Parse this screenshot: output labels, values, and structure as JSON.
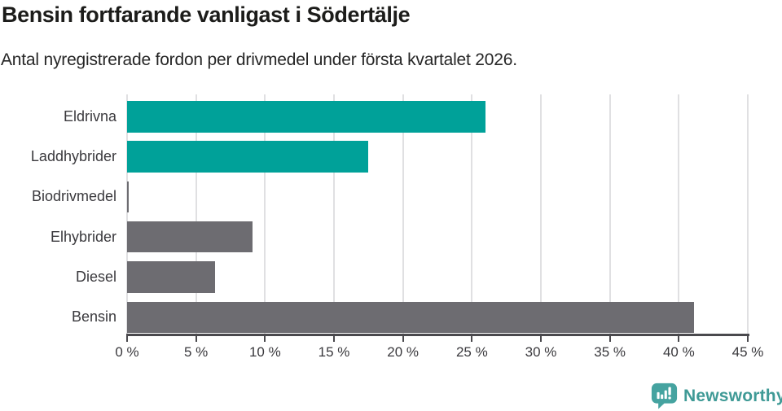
{
  "chart_data": {
    "type": "bar",
    "orientation": "horizontal",
    "title": "Bensin fortfarande vanligast i Södertälje",
    "subtitle": "Antal nyregistrerade fordon per drivmedel under första kvartalet 2026.",
    "categories": [
      "Eldrivna",
      "Laddhybrider",
      "Biodrivmedel",
      "Elhybrider",
      "Diesel",
      "Bensin"
    ],
    "values": [
      26,
      17.5,
      0.1,
      9.1,
      6.4,
      41.1
    ],
    "unit": "%",
    "bar_colors": [
      "#00a199",
      "#00a199",
      "#6d6c71",
      "#6d6c71",
      "#6d6c71",
      "#6d6c71"
    ],
    "xlabel": "",
    "ylabel": "",
    "xlim": [
      0,
      45
    ],
    "x_ticks": [
      0,
      5,
      10,
      15,
      20,
      25,
      30,
      35,
      40,
      45
    ],
    "x_tick_labels": [
      "0 %",
      "5 %",
      "10 %",
      "15 %",
      "20 %",
      "25 %",
      "30 %",
      "35 %",
      "40 %",
      "45 %"
    ],
    "grid": true,
    "legend": false
  },
  "branding": {
    "name": "Newsworthy",
    "icon": "newsworthy-bar-chart-speech-bubble-icon",
    "icon_color": "#45a3a0",
    "text_color": "#3f9a96"
  },
  "colors": {
    "accent_teal": "#00a199",
    "bar_gray": "#6d6c71",
    "gridline": "#e0e0e2",
    "axis": "#4a494d",
    "text_dark": "#1c1c1a",
    "text_label": "#3a393d"
  }
}
